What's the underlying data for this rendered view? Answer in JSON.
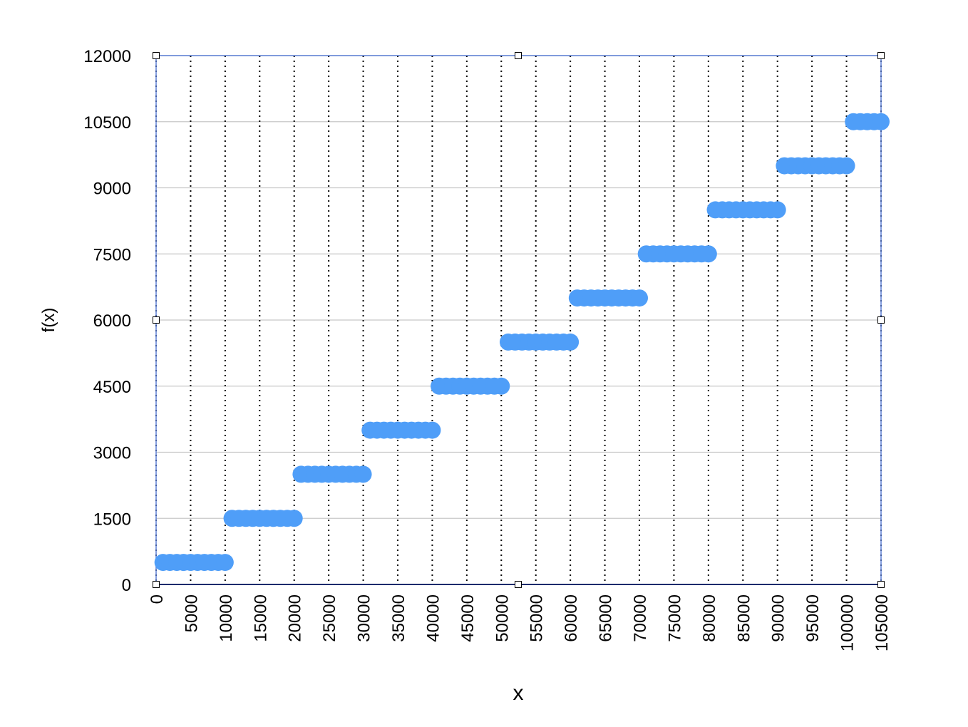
{
  "chart_data": {
    "type": "scatter",
    "x_label": "x",
    "y_label": "f(x)",
    "color": "#4f9ef8",
    "grid": true,
    "xlim": [
      0,
      105000
    ],
    "ylim": [
      0,
      12000
    ],
    "xticks": [
      0,
      5000,
      10000,
      15000,
      20000,
      25000,
      30000,
      35000,
      40000,
      45000,
      50000,
      55000,
      60000,
      65000,
      70000,
      75000,
      80000,
      85000,
      90000,
      95000,
      100000,
      105000
    ],
    "yticks": [
      0,
      1500,
      3000,
      4500,
      6000,
      7500,
      9000,
      10500,
      12000
    ],
    "x": [
      1000,
      2000,
      3000,
      4000,
      5000,
      6000,
      7000,
      8000,
      9000,
      10000,
      11000,
      12000,
      13000,
      14000,
      15000,
      16000,
      17000,
      18000,
      19000,
      20000,
      21000,
      22000,
      23000,
      24000,
      25000,
      26000,
      27000,
      28000,
      29000,
      30000,
      31000,
      32000,
      33000,
      34000,
      35000,
      36000,
      37000,
      38000,
      39000,
      40000,
      41000,
      42000,
      43000,
      44000,
      45000,
      46000,
      47000,
      48000,
      49000,
      50000,
      51000,
      52000,
      53000,
      54000,
      55000,
      56000,
      57000,
      58000,
      59000,
      60000,
      61000,
      62000,
      63000,
      64000,
      65000,
      66000,
      67000,
      68000,
      69000,
      70000,
      71000,
      72000,
      73000,
      74000,
      75000,
      76000,
      77000,
      78000,
      79000,
      80000,
      81000,
      82000,
      83000,
      84000,
      85000,
      86000,
      87000,
      88000,
      89000,
      90000,
      91000,
      92000,
      93000,
      94000,
      95000,
      96000,
      97000,
      98000,
      99000,
      100000,
      101000,
      102000,
      103000,
      104000,
      105000
    ],
    "values": [
      500,
      500,
      500,
      500,
      500,
      500,
      500,
      500,
      500,
      500,
      1500,
      1500,
      1500,
      1500,
      1500,
      1500,
      1500,
      1500,
      1500,
      1500,
      2500,
      2500,
      2500,
      2500,
      2500,
      2500,
      2500,
      2500,
      2500,
      2500,
      3500,
      3500,
      3500,
      3500,
      3500,
      3500,
      3500,
      3500,
      3500,
      3500,
      4500,
      4500,
      4500,
      4500,
      4500,
      4500,
      4500,
      4500,
      4500,
      4500,
      5500,
      5500,
      5500,
      5500,
      5500,
      5500,
      5500,
      5500,
      5500,
      5500,
      6500,
      6500,
      6500,
      6500,
      6500,
      6500,
      6500,
      6500,
      6500,
      6500,
      7500,
      7500,
      7500,
      7500,
      7500,
      7500,
      7500,
      7500,
      7500,
      7500,
      8500,
      8500,
      8500,
      8500,
      8500,
      8500,
      8500,
      8500,
      8500,
      8500,
      9500,
      9500,
      9500,
      9500,
      9500,
      9500,
      9500,
      9500,
      9500,
      9500,
      10500,
      10500,
      10500,
      10500,
      10500
    ]
  }
}
